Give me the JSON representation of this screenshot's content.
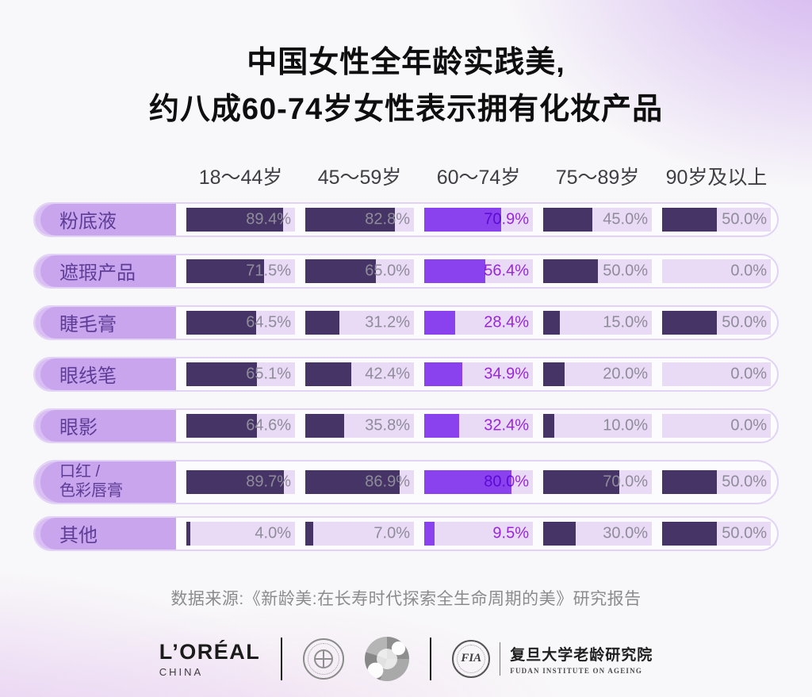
{
  "title": {
    "line1": "中国女性全年龄实践美,",
    "line2": "约八成60-74岁女性表示拥有化妆产品"
  },
  "chart_data": {
    "type": "bar",
    "orientation": "horizontal",
    "unit": "percent",
    "value_suffix": "%",
    "xlim": [
      0,
      100
    ],
    "columns": [
      "18〜44岁",
      "45〜59岁",
      "60〜74岁",
      "75〜89岁",
      "90岁及以上"
    ],
    "highlight_column_index": 2,
    "rows": [
      {
        "label": "粉底液",
        "values": [
          89.4,
          82.8,
          70.9,
          45.0,
          50.0
        ]
      },
      {
        "label": "遮瑕产品",
        "values": [
          71.5,
          65.0,
          56.4,
          50.0,
          0.0
        ]
      },
      {
        "label": "睫毛膏",
        "values": [
          64.5,
          31.2,
          28.4,
          15.0,
          50.0
        ]
      },
      {
        "label": "眼线笔",
        "values": [
          65.1,
          42.4,
          34.9,
          20.0,
          0.0
        ]
      },
      {
        "label": "眼影",
        "values": [
          64.6,
          35.8,
          32.4,
          10.0,
          0.0
        ]
      },
      {
        "label": "口红 /\n色彩唇膏",
        "values": [
          89.7,
          86.9,
          80.0,
          70.0,
          50.0
        ]
      },
      {
        "label": "其他",
        "values": [
          4.0,
          7.0,
          9.5,
          30.0,
          50.0
        ]
      }
    ],
    "colors": {
      "bar": "#463467",
      "bar_highlight": "#8a41ee",
      "track": "#e9daf6",
      "pill_bg": "#c9a5ee",
      "pill_edge": "#d9bef3",
      "pill_text": "#5e3d96",
      "value_text": "#8f8c99",
      "value_text_highlight": "#a82ce4",
      "capsule_border": "#e2d3f6",
      "capsule_bg": "#fcfbfe"
    }
  },
  "source": "数据来源:《新龄美:在长寿时代探索全生命周期的美》研究报告",
  "footer": {
    "loreal": {
      "name": "L’ORÉAL",
      "sub": "CHINA"
    },
    "fudan": {
      "monogram": "FIA",
      "name": "复旦大学老龄研究院",
      "sub": "FUDAN INSTITUTE ON AGEING"
    }
  }
}
